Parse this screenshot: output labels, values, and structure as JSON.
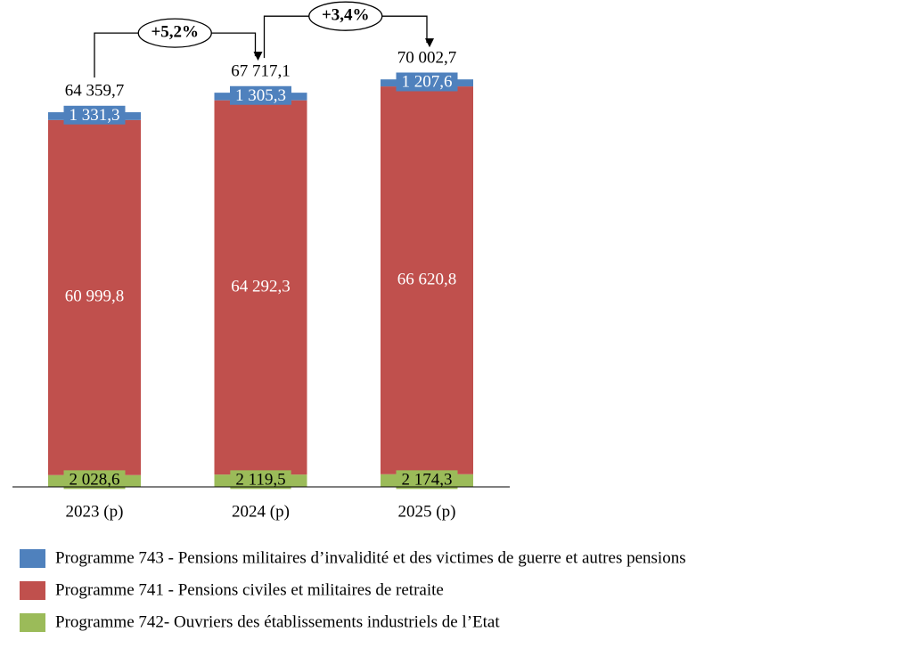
{
  "chart_data": {
    "type": "stacked_bar",
    "categories": [
      "2023 (p)",
      "2024 (p)",
      "2025 (p)"
    ],
    "series": [
      {
        "name": "Programme 742-  Ouvriers des établissements industriels de l’Etat",
        "color": "#9bbb59",
        "label_color": "#000000",
        "values": [
          2028.6,
          2119.5,
          2174.3
        ],
        "value_labels": [
          "2 028,6",
          "2 119,5",
          "2 174,3"
        ]
      },
      {
        "name": "Programme 741 - Pensions civiles et militaires de retraite",
        "color": "#c0504d",
        "label_color": "#ffffff",
        "values": [
          60999.8,
          64292.3,
          66620.8
        ],
        "value_labels": [
          "60 999,8",
          "64 292,3",
          "66 620,8"
        ]
      },
      {
        "name": "Programme 743 - Pensions militaires d’invalidité et des victimes de guerre et autres pensions",
        "color": "#4f81bd",
        "label_color": "#ffffff",
        "values": [
          1331.3,
          1305.3,
          1207.6
        ],
        "value_labels": [
          "1 331,3",
          "1 305,3",
          "1 207,6"
        ]
      }
    ],
    "totals": {
      "values": [
        64359.7,
        67717.1,
        70002.7
      ],
      "value_labels": [
        "64 359,7",
        "67 717,1",
        "70 002,7"
      ]
    },
    "growth_labels": [
      "+5,2%",
      "+3,4%"
    ]
  }
}
